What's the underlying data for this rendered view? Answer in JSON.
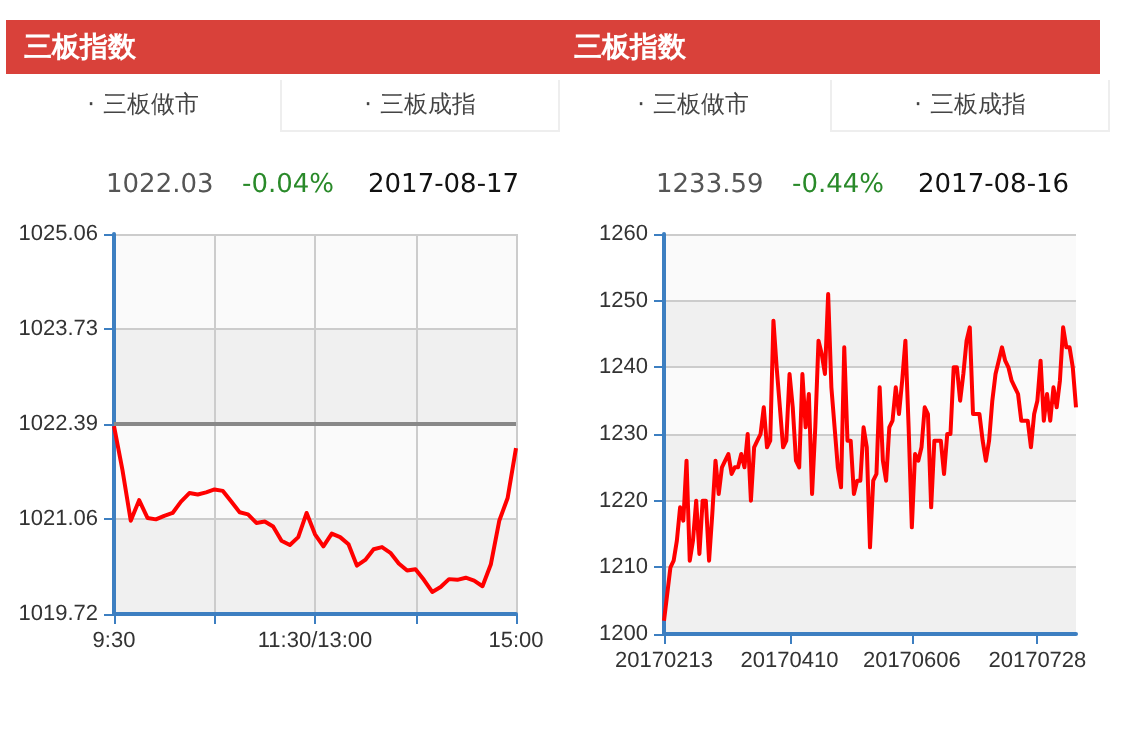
{
  "chart_data": [
    {
      "type": "line",
      "title": "三板指数",
      "annotations": [
        "· 三板做市",
        "· 三板成指",
        "1022.03",
        "-0.04%",
        "2017-08-17"
      ],
      "categories": [
        "9:30",
        null,
        null,
        null,
        null,
        null,
        null,
        null,
        null,
        null,
        null,
        null,
        null,
        null,
        null,
        null,
        null,
        null,
        null,
        null,
        null,
        null,
        null,
        null,
        "11:30/13:00",
        null,
        null,
        null,
        null,
        null,
        null,
        null,
        null,
        null,
        null,
        null,
        null,
        null,
        null,
        null,
        null,
        null,
        null,
        null,
        null,
        null,
        null,
        null,
        "15:00"
      ],
      "series": [
        {
          "color": "#ff0000",
          "values": [
            1022.36,
            1021.75,
            1021.03,
            1021.32,
            1021.07,
            1021.05,
            1021.1,
            1021.14,
            1021.3,
            1021.42,
            1021.4,
            1021.43,
            1021.47,
            1021.45,
            1021.3,
            1021.15,
            1021.12,
            1021.0,
            1021.02,
            1020.95,
            1020.75,
            1020.69,
            1020.8,
            1021.14,
            1020.84,
            1020.67,
            1020.85,
            1020.8,
            1020.7,
            1020.4,
            1020.48,
            1020.63,
            1020.66,
            1020.58,
            1020.43,
            1020.33,
            1020.35,
            1020.2,
            1020.03,
            1020.1,
            1020.21,
            1020.2,
            1020.23,
            1020.19,
            1020.11,
            1020.42,
            1021.03,
            1021.35,
            1022.05
          ]
        }
      ],
      "ylim": [
        1019.72,
        1025.06
      ],
      "yticks": [
        1019.72,
        1021.06,
        1022.39,
        1023.73,
        1025.06
      ],
      "ref_lines": [
        {
          "axis": "y",
          "value": 1022.39,
          "color": "#888888"
        }
      ],
      "grid": true
    },
    {
      "type": "line",
      "title": "三板指数",
      "annotations": [
        "· 三板做市",
        "· 三板成指",
        "1233.59",
        "-0.44%",
        "2017-08-16"
      ],
      "categories": [
        "20170213",
        null,
        null,
        null,
        null,
        null,
        null,
        null,
        null,
        null,
        null,
        null,
        null,
        null,
        null,
        null,
        null,
        null,
        null,
        null,
        null,
        null,
        null,
        null,
        null,
        null,
        null,
        null,
        null,
        null,
        null,
        null,
        null,
        null,
        null,
        null,
        null,
        null,
        null,
        "20170410",
        null,
        null,
        null,
        null,
        null,
        null,
        null,
        null,
        null,
        null,
        null,
        null,
        null,
        null,
        null,
        null,
        null,
        null,
        null,
        null,
        null,
        null,
        null,
        null,
        null,
        null,
        null,
        null,
        null,
        null,
        null,
        null,
        null,
        null,
        null,
        null,
        null,
        "20170606",
        null,
        null,
        null,
        null,
        null,
        null,
        null,
        null,
        null,
        null,
        null,
        null,
        null,
        null,
        null,
        null,
        null,
        null,
        null,
        null,
        null,
        null,
        null,
        null,
        null,
        null,
        null,
        null,
        null,
        null,
        null,
        null,
        null,
        null,
        null,
        null,
        null,
        null,
        "20170728",
        null,
        null,
        null,
        null,
        null,
        null,
        null,
        null,
        null,
        null,
        null,
        null
      ],
      "series": [
        {
          "color": "#ff0000",
          "values": [
            1202,
            1206,
            1210,
            1211,
            1214,
            1219,
            1217,
            1226,
            1211,
            1214,
            1220,
            1212,
            1220,
            1220,
            1211,
            1218,
            1226,
            1221,
            1225,
            1226,
            1227,
            1224,
            1225,
            1225,
            1227,
            1225,
            1230,
            1220,
            1228,
            1229,
            1230,
            1234,
            1228,
            1229,
            1247,
            1240,
            1234,
            1228,
            1229,
            1239,
            1234,
            1226,
            1225,
            1239,
            1231,
            1236,
            1221,
            1231,
            1244,
            1242,
            1239,
            1251,
            1237,
            1231,
            1225,
            1222,
            1243,
            1229,
            1229,
            1221,
            1223,
            1223,
            1231,
            1228,
            1213,
            1223,
            1224,
            1237,
            1226,
            1223,
            1231,
            1232,
            1237,
            1233,
            1238,
            1244,
            1231,
            1216,
            1227,
            1226,
            1228,
            1234,
            1233,
            1219,
            1229,
            1229,
            1229,
            1224,
            1230,
            1230,
            1240,
            1240,
            1235,
            1239,
            1244,
            1246,
            1233,
            1233,
            1233,
            1229,
            1226,
            1229,
            1235,
            1239,
            1241,
            1243,
            1241,
            1240,
            1238,
            1237,
            1236,
            1232,
            1232,
            1232,
            1228,
            1233,
            1235,
            1241,
            1232,
            1236,
            1232,
            1237,
            1234,
            1238,
            1246,
            1243,
            1243,
            1240,
            1234
          ]
        }
      ],
      "ylim": [
        1200,
        1260
      ],
      "yticks": [
        1200,
        1210,
        1220,
        1230,
        1240,
        1250,
        1260
      ],
      "grid": "y"
    }
  ]
}
